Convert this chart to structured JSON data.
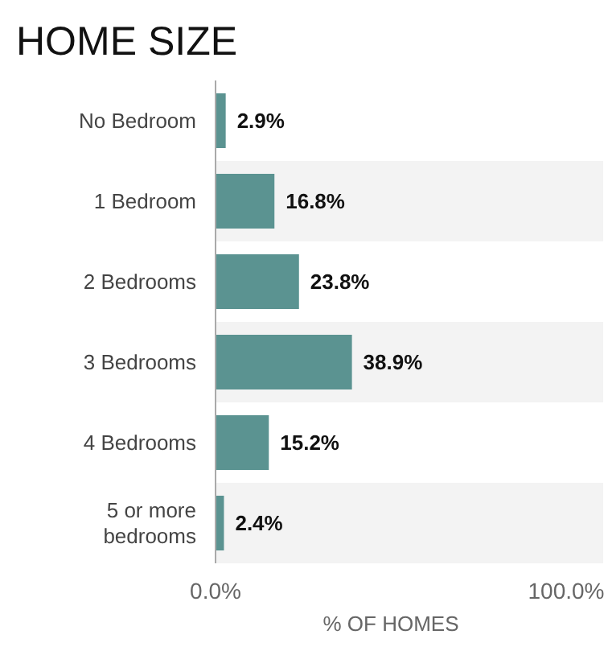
{
  "chart_data": {
    "type": "bar",
    "title": "HOME SIZE",
    "orientation": "horizontal",
    "xlabel": "% OF HOMES",
    "categories": [
      "No Bedroom",
      "1 Bedroom",
      "2 Bedrooms",
      "3 Bedrooms",
      "4 Bedrooms",
      "5 or more bedrooms"
    ],
    "values": [
      2.9,
      16.8,
      23.8,
      38.9,
      15.2,
      2.4
    ],
    "value_labels": [
      "2.9%",
      "16.8%",
      "23.8%",
      "38.9%",
      "15.2%",
      "2.4%"
    ],
    "color": "#5b9391",
    "xlim": [
      0,
      100
    ],
    "xticks": [
      {
        "value": 0,
        "label": "0.0%"
      },
      {
        "value": 100,
        "label": "100.0%"
      }
    ],
    "grid": false
  }
}
